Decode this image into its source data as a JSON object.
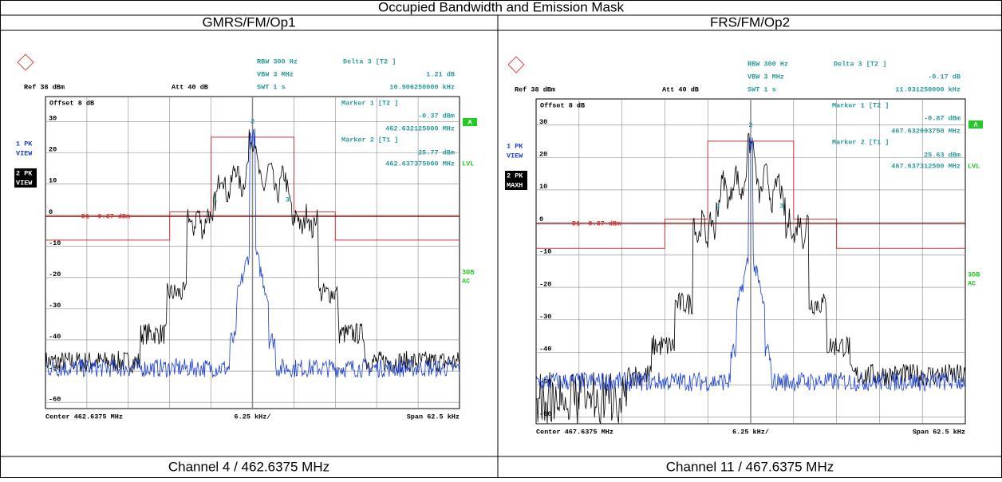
{
  "header": {
    "title": "Occupied Bandwidth and Emission Mask"
  },
  "columns": [
    {
      "heading": "GMRS/FM/Op1",
      "caption": "Channel 4 / 462.6375 MHz",
      "screen": {
        "rbw": "RBW 300 Hz",
        "vbw": "VBW 3 MHz",
        "swt": "SWT 1 s",
        "ref": "Ref 38 dBm",
        "att": "Att 40 dB",
        "delta": "Delta 3 [T2 ]",
        "delta_level": "1.21 dB",
        "delta_freq": "10.906250000 kHz",
        "offset": "Offset 8 dB",
        "marker1": "Marker 1 [T2 ]",
        "marker1_level": "-0.37 dBm",
        "marker1_freq": "462.632125000 MHz",
        "marker2": "Marker 2 [T1 ]",
        "marker2_level": "25.77 dBm",
        "marker2_freq": "462.637375000 MHz",
        "display_line": "D1 -0.37 dBm",
        "trace1": [
          "1 PK",
          "VIEW"
        ],
        "trace2": [
          "2 PK",
          "VIEW"
        ],
        "a": "A",
        "lvl": "LVL",
        "det": [
          "3DB",
          "AC"
        ],
        "y_labels": [
          "30",
          "20",
          "10",
          "0",
          "-10",
          "-20",
          "-30",
          "-40",
          "-50",
          "-60"
        ],
        "center": "Center 462.6375 MHz",
        "div": "6.25 kHz/",
        "span": "Span 62.5 kHz",
        "marker_ids": [
          "1",
          "2",
          "3"
        ]
      }
    },
    {
      "heading": "FRS/FM/Op2",
      "caption": "Channel 11 / 467.6375 MHz",
      "screen": {
        "rbw": "RBW 300 Hz",
        "vbw": "VBW 3 MHz",
        "swt": "SWT 1 s",
        "ref": "Ref 38 dBm",
        "att": "Att 40 dB",
        "delta": "Delta 3 [T2 ]",
        "delta_level": "-0.17 dB",
        "delta_freq": "11.031250000 kHz",
        "offset": "Offset 8 dB",
        "marker1": "Marker 1 [T2 ]",
        "marker1_level": "-0.87 dBm",
        "marker1_freq": "467.632093750 MHz",
        "marker2": "Marker 2 [T1 ]",
        "marker2_level": "25.63 dBm",
        "marker2_freq": "467.637312500 MHz",
        "display_line": "D1 -0.37 dBm",
        "trace1": [
          "1 PK",
          "VIEW"
        ],
        "trace2": [
          "2 PK",
          "MAXH"
        ],
        "a": "A",
        "lvl": "LVL",
        "det": [
          "3DB",
          "AC"
        ],
        "y_labels": [
          "30",
          "20",
          "10",
          "0",
          "-10",
          "-20",
          "-30",
          "-40",
          "-50",
          "-60"
        ],
        "center": "Center 467.6375 MHz",
        "div": "6.25 kHz/",
        "span": "Span 62.5 kHz",
        "marker_ids": [
          "1",
          "2",
          "3"
        ]
      }
    }
  ]
}
